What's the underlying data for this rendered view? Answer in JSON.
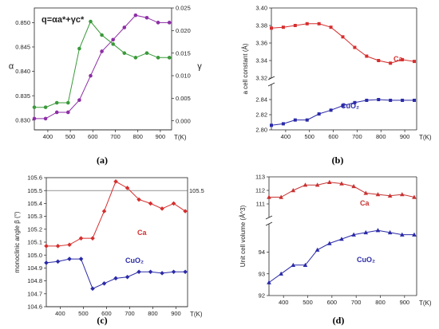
{
  "chart_data": [
    {
      "id": "a",
      "type": "line",
      "panel_label": "(a)",
      "formula": "q=αa*+γc*",
      "xlabel": "T(K)",
      "ylabel": "α",
      "y2label": "γ",
      "xlim": [
        340,
        950
      ],
      "ylim": [
        0.828,
        0.853
      ],
      "y2lim": [
        -0.002,
        0.025
      ],
      "xticks": [
        "400",
        "500",
        "600",
        "700",
        "800",
        "900"
      ],
      "yticks": [
        "0.830",
        "0.835",
        "0.840",
        "0.845",
        "0.850"
      ],
      "y2ticks": [
        "0.000",
        "0.005",
        "0.010",
        "0.015",
        "0.020",
        "0.025"
      ],
      "grid": false,
      "series": [
        {
          "axis": "left",
          "color": "#8e2ea6",
          "marker": "circle",
          "x": [
            340,
            390,
            440,
            490,
            540,
            590,
            640,
            690,
            740,
            790,
            840,
            890,
            940
          ],
          "y": [
            0.8303,
            0.8303,
            0.8316,
            0.8316,
            0.8341,
            0.8391,
            0.8441,
            0.8465,
            0.849,
            0.8515,
            0.851,
            0.85,
            0.85
          ]
        },
        {
          "axis": "right",
          "color": "#3a9a3a",
          "marker": "circle",
          "x": [
            340,
            390,
            440,
            490,
            540,
            590,
            640,
            690,
            740,
            790,
            840,
            890,
            940
          ],
          "y": [
            0.003,
            0.003,
            0.004,
            0.004,
            0.016,
            0.022,
            0.019,
            0.017,
            0.015,
            0.014,
            0.015,
            0.014,
            0.014
          ]
        }
      ]
    },
    {
      "id": "b",
      "type": "line",
      "panel_label": "(b)",
      "xlabel": "T(K)",
      "ylabel": "a cell constant (Å)",
      "xlim": [
        340,
        950
      ],
      "xticks": [
        "400",
        "500",
        "600",
        "700",
        "800",
        "900"
      ],
      "upper_ylim": [
        3.32,
        3.4
      ],
      "upper_yticks": [
        "3.32",
        "3.34",
        "3.36",
        "3.38",
        "3.40"
      ],
      "lower_ylim": [
        2.8,
        2.86
      ],
      "lower_yticks": [
        "2.80",
        "2.82",
        "2.84"
      ],
      "grid": false,
      "series": [
        {
          "name": "Ca",
          "color": "#d62e2e",
          "marker": "square",
          "segment": "upper",
          "x": [
            340,
            390,
            440,
            490,
            540,
            590,
            640,
            690,
            740,
            790,
            840,
            890,
            940
          ],
          "y": [
            3.377,
            3.378,
            3.38,
            3.382,
            3.382,
            3.378,
            3.367,
            3.355,
            3.345,
            3.34,
            3.337,
            3.341,
            3.339
          ]
        },
        {
          "name": "CuO₂",
          "color": "#2a2aa8",
          "marker": "square",
          "segment": "lower",
          "x": [
            340,
            390,
            440,
            490,
            540,
            590,
            640,
            690,
            740,
            790,
            840,
            890,
            940
          ],
          "y": [
            2.806,
            2.808,
            2.813,
            2.813,
            2.821,
            2.826,
            2.832,
            2.836,
            2.839,
            2.84,
            2.839,
            2.839,
            2.839
          ]
        }
      ]
    },
    {
      "id": "c",
      "type": "line",
      "panel_label": "(c)",
      "xlabel": "T(K)",
      "ylabel": "monoclinic angle β (°)",
      "xlim": [
        340,
        950
      ],
      "ylim": [
        104.6,
        105.6
      ],
      "xticks": [
        "400",
        "500",
        "600",
        "700",
        "800",
        "900"
      ],
      "yticks": [
        "104.6",
        "104.7",
        "104.8",
        "104.9",
        "105.0",
        "105.1",
        "105.2",
        "105.3",
        "105.4",
        "105.5",
        "105.6"
      ],
      "reference_line": {
        "y": 105.5,
        "label": "105.5"
      },
      "grid": false,
      "series": [
        {
          "name": "Ca",
          "color": "#d62e2e",
          "marker": "diamond",
          "x": [
            340,
            390,
            440,
            490,
            540,
            590,
            640,
            690,
            740,
            790,
            840,
            890,
            940
          ],
          "y": [
            105.07,
            105.07,
            105.08,
            105.13,
            105.13,
            105.34,
            105.57,
            105.52,
            105.43,
            105.4,
            105.36,
            105.4,
            105.34
          ]
        },
        {
          "name": "CuO₂",
          "color": "#2a2aa8",
          "marker": "diamond",
          "x": [
            340,
            390,
            440,
            490,
            540,
            590,
            640,
            690,
            740,
            790,
            840,
            890,
            940
          ],
          "y": [
            104.94,
            104.95,
            104.97,
            104.97,
            104.74,
            104.78,
            104.82,
            104.83,
            104.87,
            104.87,
            104.86,
            104.87,
            104.87
          ]
        }
      ]
    },
    {
      "id": "d",
      "type": "line",
      "panel_label": "(d)",
      "xlabel": "T(K)",
      "ylabel": "Unit cell volume (Å^3)",
      "xlim": [
        340,
        950
      ],
      "xticks": [
        "400",
        "500",
        "600",
        "700",
        "800",
        "900"
      ],
      "upper_ylim": [
        110,
        113
      ],
      "upper_yticks": [
        "111",
        "112",
        "113"
      ],
      "lower_ylim": [
        92,
        95.3
      ],
      "lower_yticks": [
        "92",
        "93",
        "94"
      ],
      "grid": false,
      "series": [
        {
          "name": "Ca",
          "color": "#c83232",
          "marker": "triangle",
          "segment": "upper",
          "x": [
            340,
            390,
            440,
            490,
            540,
            590,
            640,
            690,
            740,
            790,
            840,
            890,
            940
          ],
          "y": [
            111.5,
            111.5,
            112.0,
            112.4,
            112.4,
            112.6,
            112.5,
            112.3,
            111.8,
            111.7,
            111.6,
            111.7,
            111.5
          ]
        },
        {
          "name": "CuO₂",
          "color": "#2a2aa8",
          "marker": "triangle",
          "segment": "lower",
          "x": [
            340,
            390,
            440,
            490,
            540,
            590,
            640,
            690,
            740,
            790,
            840,
            890,
            940
          ],
          "y": [
            92.6,
            93.0,
            93.4,
            93.4,
            94.1,
            94.4,
            94.6,
            94.8,
            94.9,
            95.0,
            94.9,
            94.8,
            94.8
          ]
        }
      ]
    }
  ]
}
